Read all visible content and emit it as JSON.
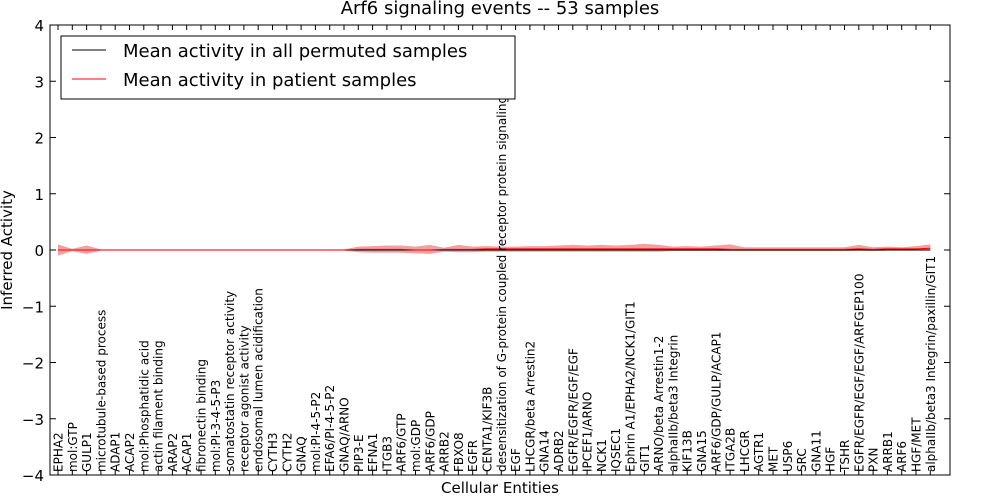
{
  "chart_data": {
    "type": "line",
    "title": "Arf6 signaling events -- 53 samples",
    "xlabel": "Cellular Entities",
    "ylabel": "Inferred Activity",
    "ylim": [
      -4,
      4
    ],
    "yticks": [
      -4,
      -3,
      -2,
      -1,
      0,
      1,
      2,
      3,
      4
    ],
    "legend_position": "top-left",
    "categories": [
      "EPHA2",
      "mol:GTP",
      "GULP1",
      "microtubule-based process",
      "ADAP1",
      "ACAP2",
      "mol:Phosphatidic acid",
      "actin filament binding",
      "ARAP2",
      "ACAP1",
      "fibronectin binding",
      "mol:PI-3-4-5-P3",
      "somatostatin receptor activity",
      "receptor agonist activity",
      "endosomal lumen acidification",
      "CYTH3",
      "CYTH2",
      "GNAQ",
      "mol:PI-4-5-P2",
      "EFA6/PI-4-5-P2",
      "GNAQ/ARNO",
      "PIP3-E",
      "EFNA1",
      "ITGB3",
      "ARF6/GTP",
      "mol:GDP",
      "ARF6/GDP",
      "ARRB2",
      "FBXO8",
      "EGFR",
      "CENTA1/KIF3B",
      "desensitization of G-protein coupled receptor protein signaling pathway",
      "EGF",
      "LHCGR/beta Arrestin2",
      "GNA14",
      "ADRB2",
      "EGFR/EGFR/EGF/EGF",
      "IPCEF1/ARNO",
      "NCK1",
      "IQSEC1",
      "Ephrin A1/EPHA2/NCK1/GIT1",
      "GIT1",
      "ARNO/beta Arrestin1-2",
      "alphaIIb/beta3 Integrin",
      "KIF13B",
      "GNA15",
      "ARF6/GDP/GULP/ACAP1",
      "ITGA2B",
      "LHCGR",
      "AGTR1",
      "MET",
      "USP6",
      "SRC",
      "GNA11",
      "HGF",
      "TSHR",
      "EGFR/EGFR/EGF/EGF/ARFGEP100",
      "PXN",
      "ARRB1",
      "ARF6",
      "HGF/MET",
      "alphaIIb/beta3 Integrin/paxillin/GIT1"
    ],
    "series": [
      {
        "name": "Mean activity in all permuted samples",
        "color": "#000000",
        "values": [
          0,
          0,
          0,
          0,
          0,
          0,
          0,
          0,
          0,
          0,
          0,
          0,
          0,
          0,
          0,
          0,
          0,
          0,
          0,
          0,
          0,
          0,
          0,
          0,
          0,
          0,
          0,
          0,
          0,
          0,
          0,
          0,
          0,
          0,
          0,
          0,
          0,
          0,
          0,
          0,
          0,
          0,
          0,
          0,
          0,
          0,
          0,
          0,
          0,
          0,
          0,
          0,
          0,
          0,
          0,
          0,
          0,
          0,
          0,
          0,
          0,
          0
        ]
      },
      {
        "name": "Mean activity in patient samples",
        "color": "#ff0000",
        "band_color": "#f08080",
        "values": [
          0,
          0,
          0,
          0,
          0,
          0,
          0,
          0,
          0,
          0,
          0,
          0,
          0,
          0,
          0,
          0,
          0,
          0,
          0,
          0,
          0,
          0.01,
          0.01,
          0.01,
          0.01,
          0,
          0,
          0.01,
          0.01,
          0.01,
          0.02,
          0.02,
          0.02,
          0.02,
          0.02,
          0.02,
          0.02,
          0.02,
          0.02,
          0.02,
          0.02,
          0.02,
          0.02,
          0.02,
          0.02,
          0.02,
          0.02,
          0.01,
          0.01,
          0.01,
          0.01,
          0.01,
          0.01,
          0.01,
          0.01,
          0.01,
          0.02,
          0.01,
          0.02,
          0.02,
          0.02,
          0.03
        ],
        "lower": [
          -0.1,
          -0.02,
          -0.07,
          -0.01,
          -0.01,
          -0.01,
          -0.01,
          -0.01,
          -0.01,
          -0.01,
          -0.01,
          -0.01,
          -0.01,
          -0.01,
          -0.01,
          -0.01,
          -0.01,
          -0.01,
          -0.01,
          -0.01,
          -0.01,
          -0.04,
          -0.05,
          -0.05,
          -0.05,
          -0.06,
          -0.07,
          -0.03,
          -0.04,
          -0.04,
          -0.03,
          -0.03,
          -0.03,
          -0.03,
          -0.03,
          -0.03,
          -0.03,
          -0.03,
          -0.03,
          -0.03,
          -0.03,
          -0.03,
          -0.03,
          -0.02,
          -0.02,
          -0.02,
          -0.02,
          -0.02,
          -0.02,
          -0.02,
          -0.02,
          -0.02,
          -0.02,
          -0.02,
          -0.02,
          -0.02,
          -0.01,
          -0.02,
          -0.01,
          -0.01,
          -0.01,
          -0.01
        ],
        "upper": [
          0.1,
          0.02,
          0.08,
          0.01,
          0.01,
          0.01,
          0.01,
          0.01,
          0.01,
          0.01,
          0.01,
          0.01,
          0.01,
          0.01,
          0.01,
          0.01,
          0.01,
          0.01,
          0.01,
          0.01,
          0.01,
          0.06,
          0.07,
          0.08,
          0.08,
          0.06,
          0.09,
          0.04,
          0.09,
          0.06,
          0.07,
          0.06,
          0.06,
          0.07,
          0.07,
          0.08,
          0.09,
          0.08,
          0.09,
          0.08,
          0.09,
          0.11,
          0.09,
          0.06,
          0.07,
          0.06,
          0.08,
          0.1,
          0.05,
          0.05,
          0.05,
          0.05,
          0.05,
          0.05,
          0.05,
          0.05,
          0.09,
          0.05,
          0.06,
          0.05,
          0.07,
          0.1
        ]
      }
    ]
  }
}
